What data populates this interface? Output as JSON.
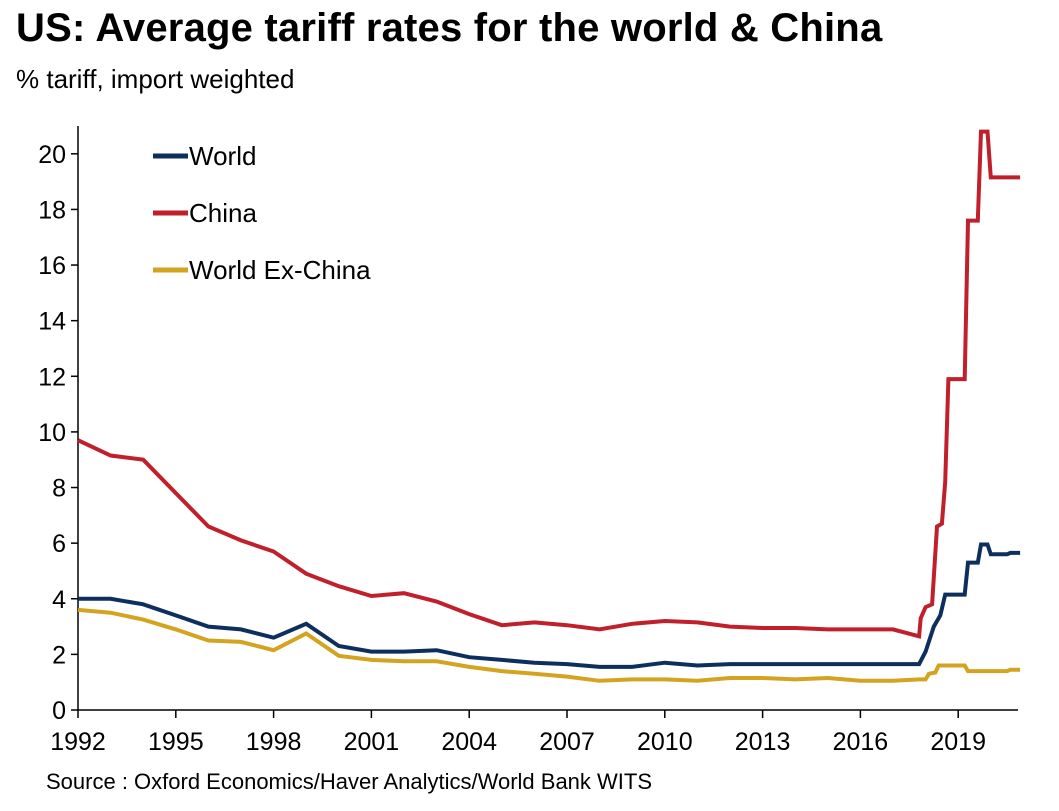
{
  "header": {
    "title": "US: Average tariff rates for the world & China",
    "subtitle": "% tariff, import weighted"
  },
  "footer": {
    "source": "Source : Oxford Economics/Haver Analytics/World Bank WITS"
  },
  "chart_data": {
    "type": "line",
    "title": "US: Average tariff rates for the world & China",
    "subtitle": "% tariff, import weighted",
    "xlabel": "",
    "ylabel": "",
    "xlim": [
      1992,
      2020.9
    ],
    "ylim": [
      0,
      21
    ],
    "x_ticks": [
      1992,
      1995,
      1998,
      2001,
      2004,
      2007,
      2010,
      2013,
      2016,
      2019
    ],
    "y_ticks": [
      0,
      2,
      4,
      6,
      8,
      10,
      12,
      14,
      16,
      18,
      20
    ],
    "grid": false,
    "legend_position": "top-left",
    "series": [
      {
        "name": "World",
        "color": "#0d2f5e",
        "points": [
          [
            1992,
            4.0
          ],
          [
            1993,
            4.0
          ],
          [
            1994,
            3.8
          ],
          [
            1995,
            3.4
          ],
          [
            1996,
            3.0
          ],
          [
            1997,
            2.9
          ],
          [
            1998,
            2.6
          ],
          [
            1999,
            3.1
          ],
          [
            2000,
            2.3
          ],
          [
            2001,
            2.1
          ],
          [
            2002,
            2.1
          ],
          [
            2003,
            2.15
          ],
          [
            2004,
            1.9
          ],
          [
            2005,
            1.8
          ],
          [
            2006,
            1.7
          ],
          [
            2007,
            1.65
          ],
          [
            2008,
            1.55
          ],
          [
            2009,
            1.55
          ],
          [
            2010,
            1.7
          ],
          [
            2011,
            1.6
          ],
          [
            2012,
            1.65
          ],
          [
            2013,
            1.65
          ],
          [
            2014,
            1.65
          ],
          [
            2015,
            1.65
          ],
          [
            2016,
            1.65
          ],
          [
            2017,
            1.65
          ],
          [
            2017.8,
            1.65
          ],
          [
            2018.0,
            2.1
          ],
          [
            2018.25,
            3.0
          ],
          [
            2018.45,
            3.4
          ],
          [
            2018.6,
            4.15
          ],
          [
            2019.2,
            4.15
          ],
          [
            2019.3,
            5.3
          ],
          [
            2019.6,
            5.3
          ],
          [
            2019.7,
            5.95
          ],
          [
            2019.9,
            5.95
          ],
          [
            2020.0,
            5.6
          ],
          [
            2020.5,
            5.6
          ],
          [
            2020.6,
            5.65
          ],
          [
            2020.9,
            5.65
          ]
        ]
      },
      {
        "name": "China",
        "color": "#c0202b",
        "points": [
          [
            1992,
            9.7
          ],
          [
            1993,
            9.15
          ],
          [
            1994,
            9.0
          ],
          [
            1995,
            7.8
          ],
          [
            1996,
            6.6
          ],
          [
            1997,
            6.1
          ],
          [
            1998,
            5.7
          ],
          [
            1999,
            4.9
          ],
          [
            2000,
            4.45
          ],
          [
            2001,
            4.1
          ],
          [
            2002,
            4.2
          ],
          [
            2003,
            3.9
          ],
          [
            2004,
            3.45
          ],
          [
            2005,
            3.05
          ],
          [
            2006,
            3.15
          ],
          [
            2007,
            3.05
          ],
          [
            2008,
            2.9
          ],
          [
            2009,
            3.1
          ],
          [
            2010,
            3.2
          ],
          [
            2011,
            3.15
          ],
          [
            2012,
            3.0
          ],
          [
            2013,
            2.95
          ],
          [
            2014,
            2.95
          ],
          [
            2015,
            2.9
          ],
          [
            2016,
            2.9
          ],
          [
            2017,
            2.9
          ],
          [
            2017.8,
            2.65
          ],
          [
            2017.85,
            3.3
          ],
          [
            2018.0,
            3.7
          ],
          [
            2018.2,
            3.8
          ],
          [
            2018.35,
            6.6
          ],
          [
            2018.5,
            6.7
          ],
          [
            2018.6,
            8.2
          ],
          [
            2018.7,
            11.9
          ],
          [
            2019.2,
            11.9
          ],
          [
            2019.3,
            17.6
          ],
          [
            2019.6,
            17.6
          ],
          [
            2019.7,
            20.8
          ],
          [
            2019.9,
            20.8
          ],
          [
            2020.0,
            19.15
          ],
          [
            2020.9,
            19.15
          ]
        ]
      },
      {
        "name": "World Ex-China",
        "color": "#d4a320",
        "points": [
          [
            1992,
            3.6
          ],
          [
            1993,
            3.5
          ],
          [
            1994,
            3.25
          ],
          [
            1995,
            2.9
          ],
          [
            1996,
            2.5
          ],
          [
            1997,
            2.45
          ],
          [
            1998,
            2.15
          ],
          [
            1999,
            2.75
          ],
          [
            2000,
            1.95
          ],
          [
            2001,
            1.8
          ],
          [
            2002,
            1.75
          ],
          [
            2003,
            1.75
          ],
          [
            2004,
            1.55
          ],
          [
            2005,
            1.4
          ],
          [
            2006,
            1.3
          ],
          [
            2007,
            1.2
          ],
          [
            2008,
            1.05
          ],
          [
            2009,
            1.1
          ],
          [
            2010,
            1.1
          ],
          [
            2011,
            1.05
          ],
          [
            2012,
            1.15
          ],
          [
            2013,
            1.15
          ],
          [
            2014,
            1.1
          ],
          [
            2015,
            1.15
          ],
          [
            2016,
            1.05
          ],
          [
            2017,
            1.05
          ],
          [
            2017.8,
            1.1
          ],
          [
            2018.0,
            1.1
          ],
          [
            2018.1,
            1.3
          ],
          [
            2018.3,
            1.35
          ],
          [
            2018.4,
            1.6
          ],
          [
            2019.2,
            1.6
          ],
          [
            2019.3,
            1.4
          ],
          [
            2020.0,
            1.4
          ],
          [
            2020.5,
            1.4
          ],
          [
            2020.6,
            1.45
          ],
          [
            2020.9,
            1.45
          ]
        ]
      }
    ]
  }
}
